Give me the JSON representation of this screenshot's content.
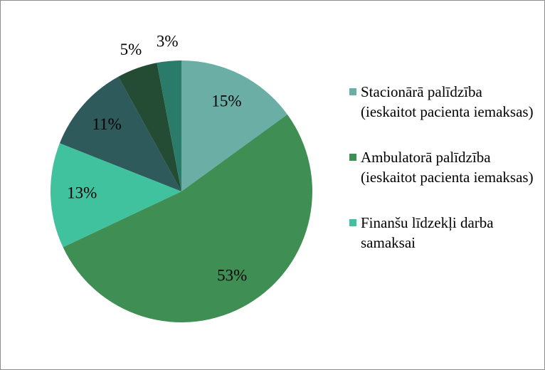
{
  "chart_data": {
    "type": "pie",
    "categories": [
      "Stacionārā palīdzība (ieskaitot pacienta iemaksas)",
      "Ambulatorā palīdzība (ieskaitot pacienta iemaksas)",
      "Finanšu līdzekļi darba samaksai",
      null,
      null,
      null
    ],
    "values": [
      15,
      53,
      13,
      11,
      5,
      3
    ],
    "value_labels": [
      "15%",
      "53%",
      "13%",
      "11%",
      "5%",
      "3%"
    ],
    "colors": [
      "#6aaea6",
      "#3f8f55",
      "#41c29f",
      "#2e5a5b",
      "#244c34",
      "#2a7b69"
    ],
    "legend": "right"
  }
}
